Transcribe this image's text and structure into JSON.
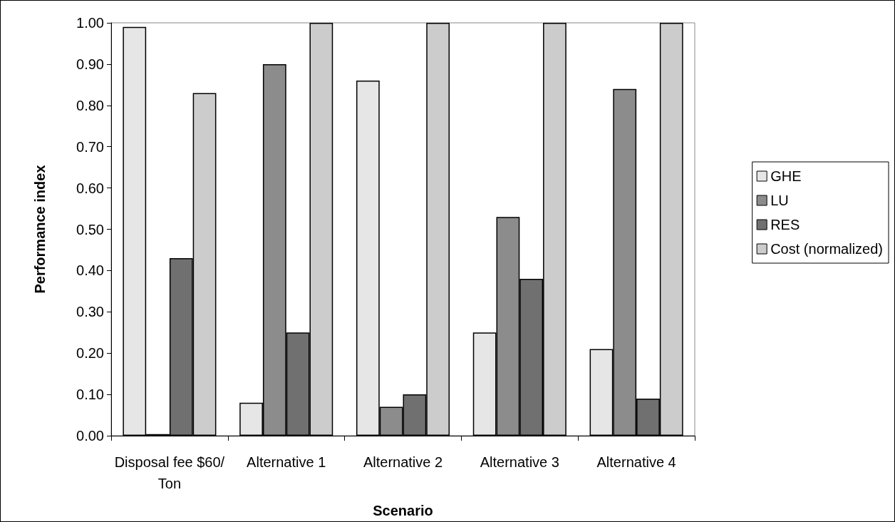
{
  "chart_data": {
    "type": "bar",
    "xlabel": "Scenario",
    "ylabel": "Performance index",
    "categories": [
      "Disposal fee $60/Ton",
      "Alternative 1",
      "Alternative 2",
      "Alternative 3",
      "Alternative 4"
    ],
    "series": [
      {
        "name": "GHE",
        "color": "#e6e6e6",
        "values": [
          0.99,
          0.08,
          0.86,
          0.25,
          0.21
        ]
      },
      {
        "name": "LU",
        "color": "#8c8c8c",
        "values": [
          0.004,
          0.9,
          0.07,
          0.53,
          0.84
        ]
      },
      {
        "name": "RES",
        "color": "#707070",
        "values": [
          0.43,
          0.25,
          0.1,
          0.38,
          0.09
        ]
      },
      {
        "name": "Cost (normalized)",
        "color": "#cccccc",
        "values": [
          0.83,
          1.0,
          1.0,
          1.0,
          1.0
        ]
      }
    ],
    "ylim": [
      0,
      1
    ],
    "yticks": [
      {
        "value": 0,
        "label": "0.00"
      },
      {
        "value": 0.1,
        "label": "0.10"
      },
      {
        "value": 0.2,
        "label": "0.20"
      },
      {
        "value": 0.3,
        "label": "0.30"
      },
      {
        "value": 0.4,
        "label": "0.40"
      },
      {
        "value": 0.5,
        "label": "0.50"
      },
      {
        "value": 0.6,
        "label": "0.60"
      },
      {
        "value": 0.7,
        "label": "0.70"
      },
      {
        "value": 0.8,
        "label": "0.80"
      },
      {
        "value": 0.9,
        "label": "0.90"
      },
      {
        "value": 1,
        "label": "1.00"
      }
    ],
    "grid": false,
    "legend": "right"
  }
}
